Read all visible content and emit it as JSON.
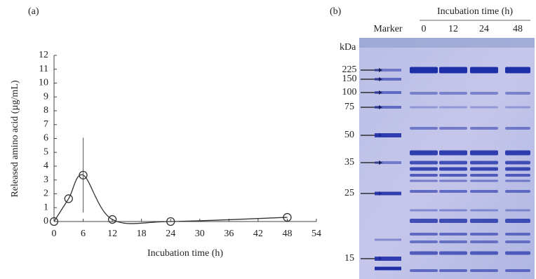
{
  "chart_data": {
    "type": "line",
    "label": "(a)",
    "x_label": "Incubation time (h)",
    "y_label": "Released amino acid (µg/mL)",
    "x": [
      0,
      3,
      6,
      12,
      24,
      48
    ],
    "values": [
      0,
      1.65,
      3.35,
      0.15,
      0,
      0.3
    ],
    "errors": [
      0,
      0,
      2.7,
      0,
      0,
      0
    ],
    "color": "#333333",
    "xlim": [
      0,
      54
    ],
    "xticks": [
      0,
      6,
      12,
      18,
      24,
      30,
      36,
      42,
      48,
      54
    ],
    "ylim": [
      0,
      12
    ],
    "yticks": [
      0,
      1,
      2,
      3,
      4,
      5,
      6,
      7,
      8,
      9,
      10,
      11,
      12
    ],
    "grid": false
  },
  "panel_b": {
    "label": "(b)",
    "header": "Incubation time (h)",
    "unit": "kDa",
    "lanes": [
      "Marker",
      "0",
      "12",
      "24",
      "48"
    ],
    "markers": [
      "225",
      "150",
      "100",
      "75",
      "50",
      "35",
      "25",
      "15"
    ]
  }
}
